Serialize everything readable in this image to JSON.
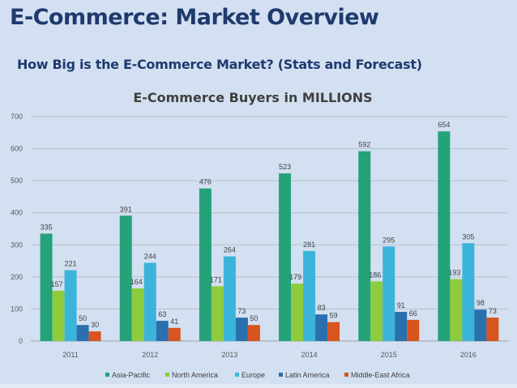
{
  "slide": {
    "title": "E-Commerce: Market Overview",
    "subtitle": "How Big is the E-Commerce Market? (Stats and Forecast)"
  },
  "chart_data": {
    "type": "bar",
    "title": "E-Commerce Buyers in MILLIONS",
    "xlabel": "",
    "ylabel": "",
    "categories": [
      "2011",
      "2012",
      "2013",
      "2014",
      "2015",
      "2016"
    ],
    "ylim": [
      0,
      700
    ],
    "yticks": [
      0,
      100,
      200,
      300,
      400,
      500,
      600,
      700
    ],
    "grid": true,
    "legend_position": "bottom",
    "data_labels": true,
    "series": [
      {
        "name": "Asia-Pacific",
        "color": "#24a27a",
        "values": [
          335,
          391,
          476,
          523,
          592,
          654
        ]
      },
      {
        "name": "North America",
        "color": "#8ccc3e",
        "values": [
          157,
          164,
          171,
          179,
          186,
          193
        ]
      },
      {
        "name": "Europe",
        "color": "#3bb4dc",
        "values": [
          221,
          244,
          264,
          281,
          295,
          305
        ]
      },
      {
        "name": "Latin America",
        "color": "#2a6fae",
        "values": [
          50,
          63,
          73,
          83,
          91,
          98
        ]
      },
      {
        "name": "Middle-East Africa",
        "color": "#d9541e",
        "values": [
          30,
          41,
          50,
          59,
          66,
          73
        ]
      }
    ]
  }
}
